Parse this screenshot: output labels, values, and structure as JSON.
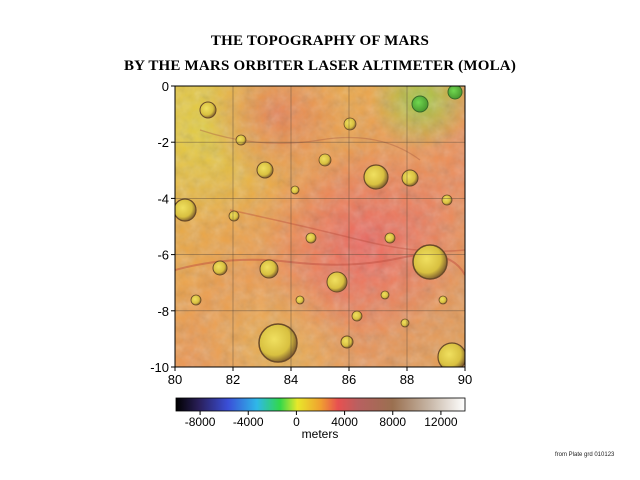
{
  "title_line1": "THE TOPOGRAPHY OF MARS",
  "title_line2": "BY THE MARS ORBITER LASER ALTIMETER (MOLA)",
  "map": {
    "x_ticks": [
      "80",
      "82",
      "84",
      "86",
      "88",
      "90"
    ],
    "y_ticks": [
      "0",
      "-2",
      "-4",
      "-6",
      "-8",
      "-10"
    ],
    "x_range": [
      80,
      90
    ],
    "y_range": [
      0,
      -10
    ],
    "grid": true,
    "gridline_color": "#5a4a3a"
  },
  "colorbar": {
    "tick_labels": [
      "-8000",
      "-4000",
      "0",
      "4000",
      "8000",
      "12000"
    ],
    "unit_label": "meters",
    "colors": [
      "#000000",
      "#2a1f5a",
      "#3a4fd8",
      "#2fb8e8",
      "#32d84a",
      "#e8e82a",
      "#f0a030",
      "#e85050",
      "#b86060",
      "#9a7050",
      "#c8b8a8",
      "#ffffff"
    ]
  },
  "credit": "from Plate grd 010123"
}
